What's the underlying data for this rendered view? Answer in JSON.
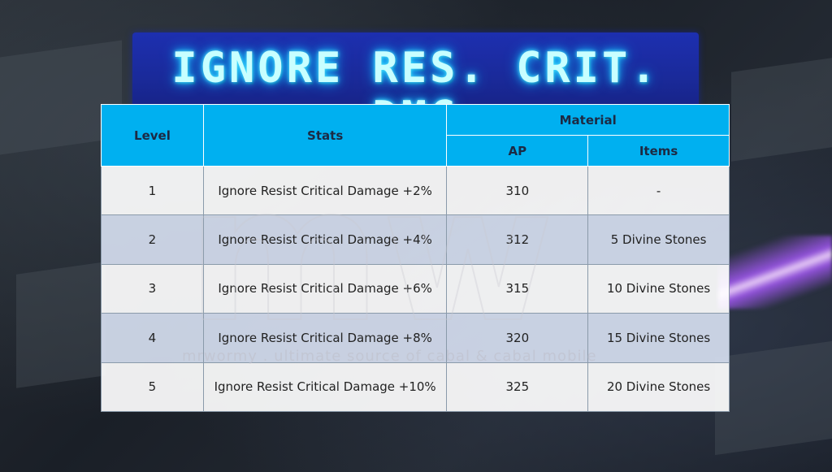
{
  "title": "IGNORE RES. CRIT. DMG",
  "table": {
    "headers": {
      "level": "Level",
      "stats": "Stats",
      "material": "Material",
      "ap": "AP",
      "items": "Items"
    },
    "rows": [
      {
        "level": "1",
        "stats": "Ignore Resist Critical Damage +2%",
        "ap": "310",
        "items": "-"
      },
      {
        "level": "2",
        "stats": "Ignore Resist Critical Damage +4%",
        "ap": "312",
        "items": "5 Divine Stones"
      },
      {
        "level": "3",
        "stats": "Ignore Resist Critical Damage +6%",
        "ap": "315",
        "items": "10 Divine Stones"
      },
      {
        "level": "4",
        "stats": "Ignore Resist Critical Damage +8%",
        "ap": "320",
        "items": "15 Divine Stones"
      },
      {
        "level": "5",
        "stats": "Ignore Resist Critical Damage +10%",
        "ap": "325",
        "items": "20 Divine Stones"
      }
    ]
  },
  "watermark": {
    "logo": "mw",
    "tagline": "mrwormy . ultimate source of cabal & cabal mobile"
  },
  "colors": {
    "header_bg": "#00b0f0",
    "banner_bg": "#1d2fb0",
    "title_glow": "#1ec8ff"
  }
}
